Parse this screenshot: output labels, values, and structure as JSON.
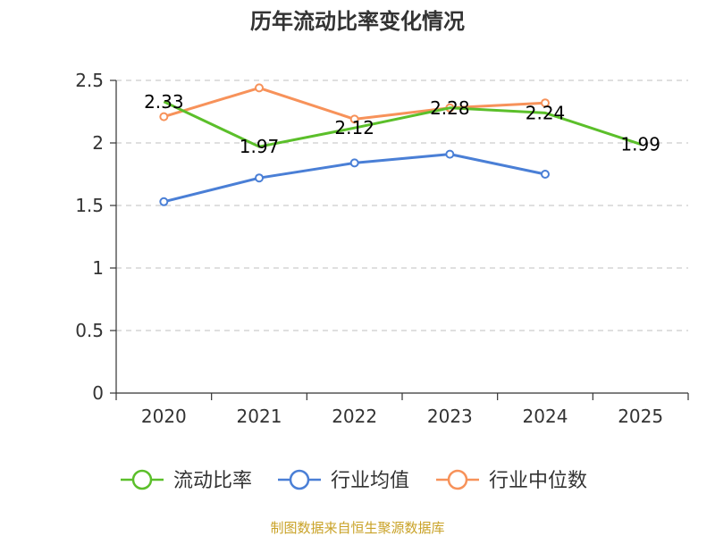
{
  "chart_data": {
    "type": "line",
    "title": "历年流动比率变化情况",
    "categories": [
      "2020",
      "2021",
      "2022",
      "2023",
      "2024",
      "2025"
    ],
    "ylim": [
      0,
      2.5
    ],
    "yticks": [
      "0",
      "0.5",
      "1",
      "1.5",
      "2",
      "2.5"
    ],
    "grid": true,
    "legend_position": "bottom",
    "series": [
      {
        "name": "流动比率",
        "color": "#5bbf2a",
        "values": [
          2.33,
          1.97,
          2.12,
          2.28,
          2.24,
          1.99
        ],
        "labels": [
          "2.33",
          "1.97",
          "2.12",
          "2.28",
          "2.24",
          "1.99"
        ],
        "show_markers": false
      },
      {
        "name": "行业均值",
        "color": "#4a7fd6",
        "values": [
          1.53,
          1.72,
          1.84,
          1.91,
          1.75,
          null
        ],
        "show_markers": true
      },
      {
        "name": "行业中位数",
        "color": "#f7925a",
        "values": [
          2.21,
          2.44,
          2.19,
          2.28,
          2.32,
          null
        ],
        "show_markers": true
      }
    ],
    "source": "制图数据来自恒生聚源数据库"
  }
}
